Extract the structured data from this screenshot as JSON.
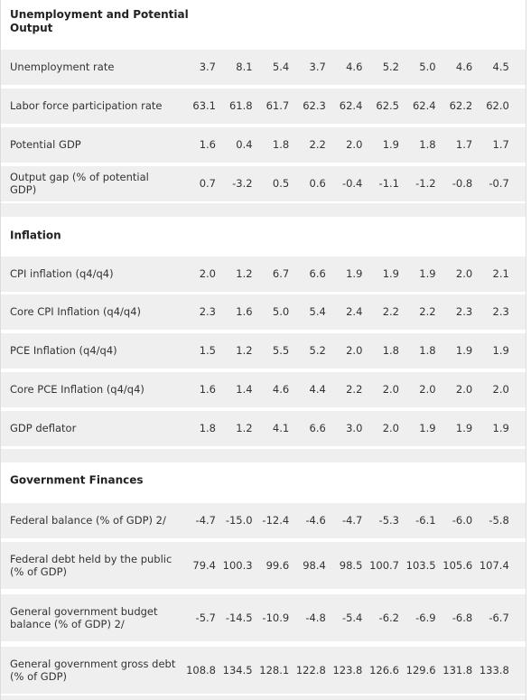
{
  "sections": [
    {
      "title": "Unemployment and Potential Output",
      "rows": [
        {
          "label": "Unemployment rate",
          "values": [
            "3.7",
            "8.1",
            "5.4",
            "3.7",
            "4.6",
            "5.2",
            "5.0",
            "4.6",
            "4.5"
          ]
        },
        {
          "label": "Labor force participation rate",
          "values": [
            "63.1",
            "61.8",
            "61.7",
            "62.3",
            "62.4",
            "62.5",
            "62.4",
            "62.2",
            "62.0"
          ]
        },
        {
          "label": "Potential GDP",
          "values": [
            "1.6",
            "0.4",
            "1.8",
            "2.2",
            "2.0",
            "1.9",
            "1.8",
            "1.7",
            "1.7"
          ]
        },
        {
          "label": "Output gap (% of potential GDP)",
          "values": [
            "0.7",
            "-3.2",
            "0.5",
            "0.6",
            "-0.4",
            "-1.1",
            "-1.2",
            "-0.8",
            "-0.7"
          ]
        }
      ]
    },
    {
      "title": "Inflation",
      "rows": [
        {
          "label": "CPI inflation (q4/q4)",
          "values": [
            "2.0",
            "1.2",
            "6.7",
            "6.6",
            "1.9",
            "1.9",
            "1.9",
            "2.0",
            "2.1"
          ]
        },
        {
          "label": "Core CPI Inflation (q4/q4)",
          "values": [
            "2.3",
            "1.6",
            "5.0",
            "5.4",
            "2.4",
            "2.2",
            "2.2",
            "2.3",
            "2.3"
          ]
        },
        {
          "label": "PCE Inflation (q4/q4)",
          "values": [
            "1.5",
            "1.2",
            "5.5",
            "5.2",
            "2.0",
            "1.8",
            "1.8",
            "1.9",
            "1.9"
          ]
        },
        {
          "label": "Core PCE Inflation (q4/q4)",
          "values": [
            "1.6",
            "1.4",
            "4.6",
            "4.4",
            "2.2",
            "2.0",
            "2.0",
            "2.0",
            "2.0"
          ]
        },
        {
          "label": "GDP deflator",
          "values": [
            "1.8",
            "1.2",
            "4.1",
            "6.6",
            "3.0",
            "2.0",
            "1.9",
            "1.9",
            "1.9"
          ]
        }
      ]
    },
    {
      "title": "Government Finances",
      "rows": [
        {
          "label": "Federal balance (% of GDP) 2/",
          "values": [
            "-4.7",
            "-15.0",
            "-12.4",
            "-4.6",
            "-4.7",
            "-5.3",
            "-6.1",
            "-6.0",
            "-5.8"
          ]
        },
        {
          "label": "Federal debt held by the public (% of GDP)",
          "values": [
            "79.4",
            "100.3",
            "99.6",
            "98.4",
            "98.5",
            "100.7",
            "103.5",
            "105.6",
            "107.4"
          ]
        },
        {
          "label": "General government budget balance (% of GDP) 2/",
          "values": [
            "-5.7",
            "-14.5",
            "-10.9",
            "-4.8",
            "-5.4",
            "-6.2",
            "-6.9",
            "-6.8",
            "-6.7"
          ]
        },
        {
          "label": "General government gross debt (% of GDP)",
          "values": [
            "108.8",
            "134.5",
            "128.1",
            "122.8",
            "123.8",
            "126.6",
            "129.6",
            "131.8",
            "133.8"
          ]
        }
      ]
    }
  ]
}
